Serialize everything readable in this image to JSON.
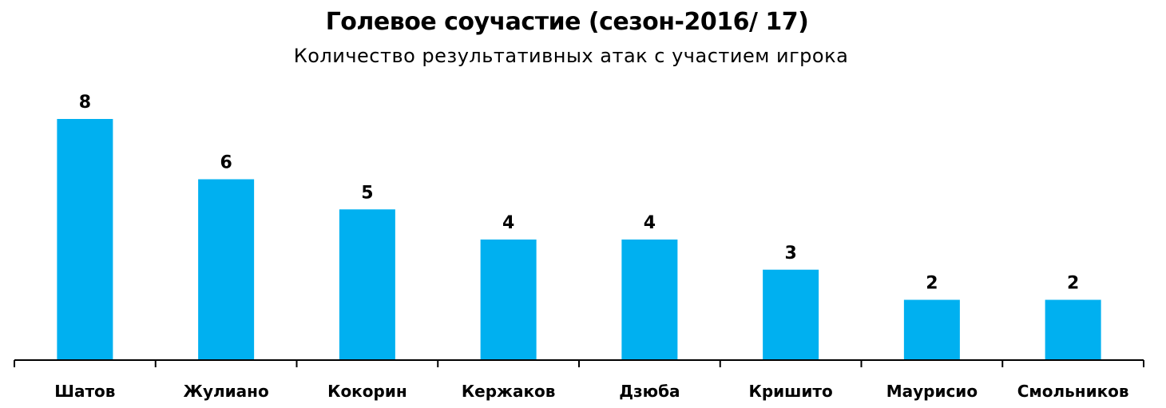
{
  "chart_data": {
    "type": "bar",
    "title": "Голевое соучастие (сезон-2016/ 17)",
    "subtitle": "Количество результативных атак с участием игрока",
    "xlabel": "",
    "ylabel": "",
    "categories": [
      "Шатов",
      "Жулиано",
      "Кокорин",
      "Кержаков",
      "Дзюба",
      "Кришито",
      "Маурисио",
      "Смольников"
    ],
    "values": [
      8,
      6,
      5,
      4,
      4,
      3,
      2,
      2
    ],
    "ylim": [
      0,
      8
    ],
    "grid": false,
    "legend": "none",
    "bar_color": "#00B0F0",
    "axis_color": "#000000"
  }
}
